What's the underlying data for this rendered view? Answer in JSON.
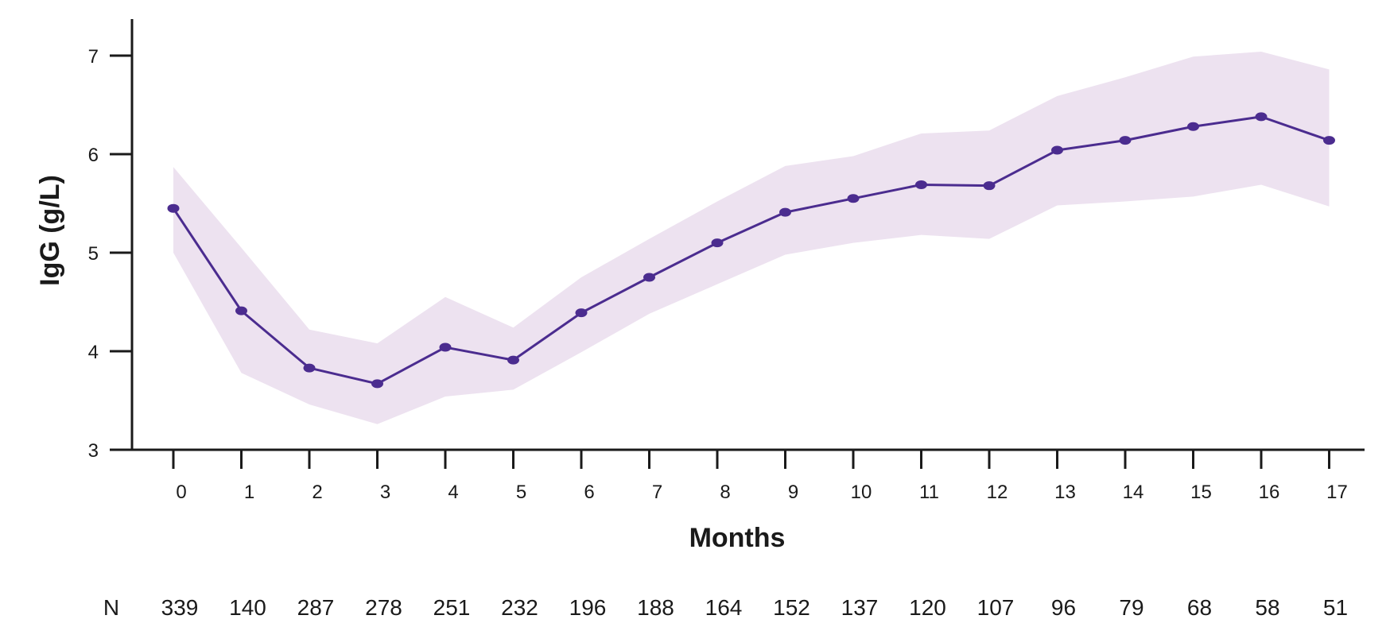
{
  "chart_data": {
    "type": "line",
    "title": "",
    "xlabel": "Months",
    "ylabel": "IgG (g/L)",
    "ylim": [
      3,
      7.3
    ],
    "yticks": [
      3,
      4,
      5,
      6,
      7
    ],
    "x": [
      0,
      1,
      2,
      3,
      4,
      5,
      6,
      7,
      8,
      9,
      10,
      11,
      12,
      13,
      14,
      15,
      16,
      17
    ],
    "series": [
      {
        "values": [
          5.45,
          4.41,
          3.83,
          3.67,
          4.04,
          3.91,
          4.39,
          4.75,
          5.1,
          5.41,
          5.55,
          5.69,
          5.68,
          6.04,
          6.14,
          6.28,
          6.38,
          6.14
        ],
        "upper": [
          5.87,
          5.05,
          4.22,
          4.08,
          4.55,
          4.24,
          4.75,
          5.14,
          5.52,
          5.88,
          5.98,
          6.21,
          6.24,
          6.59,
          6.78,
          6.99,
          7.04,
          6.86
        ],
        "lower": [
          5.0,
          3.78,
          3.46,
          3.26,
          3.54,
          3.61,
          3.99,
          4.38,
          4.68,
          4.98,
          5.1,
          5.18,
          5.14,
          5.48,
          5.52,
          5.57,
          5.69,
          5.47
        ]
      }
    ],
    "n_label": "N",
    "n_values": [
      "339",
      "140",
      "287",
      "278",
      "251",
      "232",
      "196",
      "188",
      "164",
      "152",
      "137",
      "120",
      "107",
      "96",
      "79",
      "68",
      "58",
      "51"
    ],
    "grid": false,
    "colors": {
      "line": "#4b2c8f",
      "band": "#ede2f0",
      "axis": "#1a1a1a"
    }
  }
}
